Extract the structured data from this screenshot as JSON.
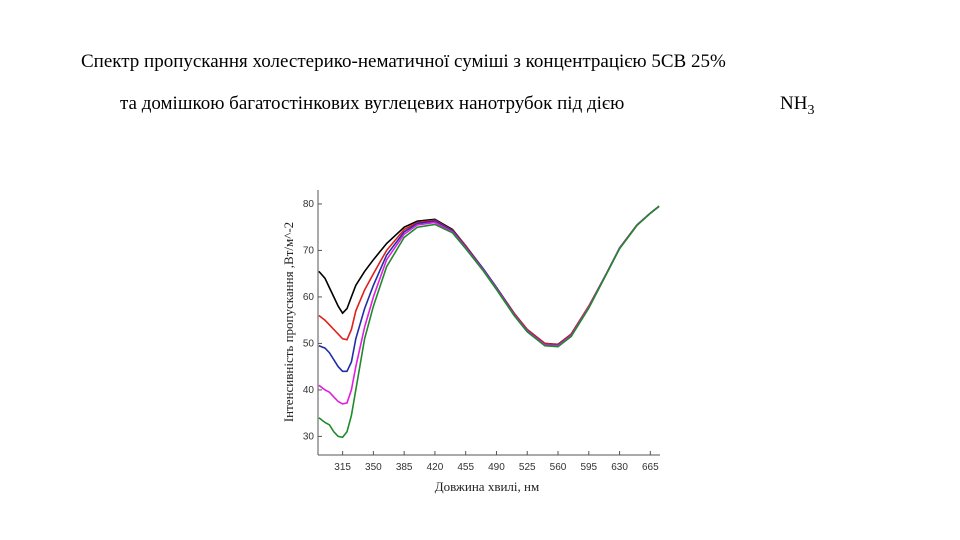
{
  "chart_data": {
    "type": "line",
    "title": "Спектр пропускання холестерико-нематичної суміші з концентрацією 5CB 25%",
    "subtitle": "та домішкою багатостінкових вуглецевих нанотрубок під дією",
    "formula": {
      "base": "NH",
      "subscript": "3"
    },
    "x_label": "Довжина хвилі, нм",
    "y_label": "Інтенсивність пропускання ,Вт/м^-2",
    "x": [
      288,
      295,
      300,
      305,
      310,
      315,
      320,
      325,
      330,
      340,
      350,
      365,
      385,
      400,
      420,
      440,
      455,
      475,
      490,
      510,
      525,
      545,
      560,
      575,
      595,
      615,
      630,
      650,
      665,
      675
    ],
    "series": [
      {
        "color": "#000000",
        "values": [
          65.5,
          64,
          62,
          60,
          58,
          56.5,
          57.5,
          60,
          62.5,
          65.5,
          68,
          71.5,
          75,
          76.3,
          76.7,
          74.5,
          71,
          66,
          62,
          56.5,
          53,
          50,
          49.8,
          52,
          58,
          65,
          70.5,
          75.5,
          78,
          79.5
        ]
      },
      {
        "color": "#e0201b",
        "values": [
          56,
          55,
          54,
          53,
          52,
          51,
          50.8,
          53,
          57,
          61.5,
          65,
          70,
          74.5,
          76,
          76.5,
          74.3,
          71,
          66,
          62,
          56.5,
          53,
          50,
          49.7,
          52,
          58,
          65,
          70.5,
          75.5,
          78,
          79.5
        ]
      },
      {
        "color": "#1f2fa8",
        "values": [
          49.5,
          49,
          48,
          46.5,
          45,
          44,
          44,
          46,
          51,
          57.5,
          62.5,
          69,
          74,
          75.8,
          76.3,
          74.2,
          70.8,
          66,
          62,
          56.3,
          52.8,
          49.8,
          49.6,
          51.8,
          57.8,
          65,
          70.5,
          75.5,
          78,
          79.5
        ]
      },
      {
        "color": "#e020e0",
        "values": [
          41,
          40,
          39.5,
          38.5,
          37.5,
          37,
          37.2,
          40,
          45,
          53.5,
          60,
          68,
          73.5,
          75.5,
          76,
          74,
          70.6,
          65.8,
          61.8,
          56.2,
          52.7,
          49.7,
          49.5,
          51.7,
          57.8,
          65,
          70.5,
          75.5,
          78,
          79.5
        ]
      },
      {
        "color": "#1f8a2a",
        "values": [
          34,
          33,
          32.5,
          31,
          30,
          29.8,
          31,
          34.5,
          40,
          51,
          58,
          66.5,
          72.8,
          75,
          75.6,
          73.8,
          70.4,
          65.6,
          61.6,
          56,
          52.5,
          49.5,
          49.3,
          51.5,
          57.6,
          64.9,
          70.4,
          75.4,
          78,
          79.5
        ]
      }
    ],
    "xlim": [
      287,
      676
    ],
    "ylim": [
      26,
      83
    ],
    "xticks": [
      315,
      350,
      385,
      420,
      455,
      490,
      525,
      560,
      595,
      630,
      665
    ],
    "yticks": [
      30,
      40,
      50,
      60,
      70,
      80
    ]
  }
}
